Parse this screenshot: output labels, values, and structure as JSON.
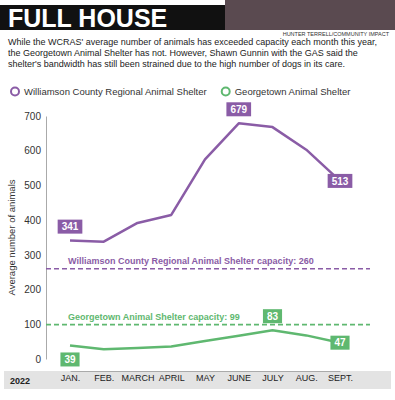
{
  "chart_data": {
    "type": "line",
    "title": "FULL HOUSE",
    "credit": "HUNTER TERRELL/COMMUNITY IMPACT",
    "subtitle": "While the WCRAS' average number of animals has exceeded capacity each month this year, the Georgetown Animal Shelter has not. However, Shawn Gunnin with the GAS said the shelter's bandwidth has still been strained due to the high number of dogs in its care.",
    "xlabel": "2022",
    "ylabel": "Average number of animals",
    "categories": [
      "JAN.",
      "FEB.",
      "MARCH",
      "APRIL",
      "MAY",
      "JUNE",
      "JULY",
      "AUG.",
      "SEPT."
    ],
    "series": [
      {
        "name": "Williamson County Regional Animal Shelter",
        "color": "#8a5ca6",
        "values": [
          341,
          338,
          392,
          415,
          575,
          679,
          668,
          603,
          513
        ],
        "value_labels": [
          "341",
          null,
          null,
          null,
          null,
          "679",
          null,
          null,
          "513"
        ]
      },
      {
        "name": "Georgetown Animal Shelter",
        "color": "#5fb870",
        "values": [
          39,
          28,
          32,
          36,
          52,
          67,
          83,
          68,
          47
        ],
        "value_labels": [
          "39",
          null,
          null,
          null,
          null,
          null,
          "83",
          null,
          "47"
        ]
      }
    ],
    "reference_lines": [
      {
        "value": 260,
        "label": "Williamson County Regional Animal Shelter capacity: 260",
        "color": "#8a5ca6"
      },
      {
        "value": 99,
        "label": "Georgetown Animal Shelter capacity: 99",
        "color": "#5fb870"
      }
    ],
    "ylim": [
      0,
      700
    ],
    "yticks": [
      0,
      100,
      200,
      300,
      400,
      500,
      600,
      700
    ],
    "grid": false,
    "legend": "top",
    "data_labels": true
  }
}
